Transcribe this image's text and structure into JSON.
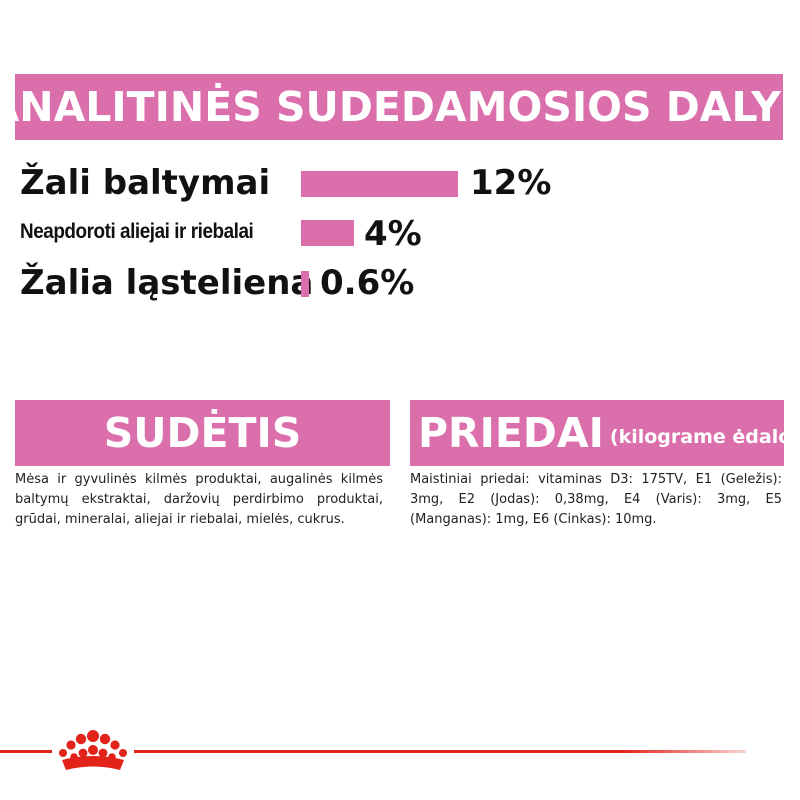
{
  "header": {
    "title": "ANALITINĖS SUDEDAMOSIOS DALYS"
  },
  "nutrients": [
    {
      "label": "Žali baltymai",
      "value": "12%",
      "percent": 12
    },
    {
      "label": "Neapdoroti aliejai ir riebalai",
      "value": "4%",
      "percent": 4
    },
    {
      "label": "Žalia ląsteliena",
      "value": "0.6%",
      "percent": 0.6
    }
  ],
  "composition": {
    "title": "SUDĖTIS",
    "text": "Mėsa ir gyvulinės kilmės produktai, augalinės kilmės baltymų ekstraktai, daržovių perdirbimo produktai, grūdai, mineralai, aliejai ir riebalai, mielės, cukrus."
  },
  "additives": {
    "title": "PRIEDAI",
    "subtitle": "(kilograme ėdalo)",
    "text": "Maistiniai priedai: vitaminas D3: 175TV, E1 (Geležis): 3mg, E2 (Jodas): 0,38mg, E4 (Varis): 3mg, E5 (Manganas): 1mg, E6 (Cinkas): 10mg."
  },
  "colors": {
    "accent": "#db6fac",
    "brand_red": "#e2231a",
    "text": "#111111"
  },
  "brand": {
    "logo_icon": "royal-canin-crown-icon"
  }
}
